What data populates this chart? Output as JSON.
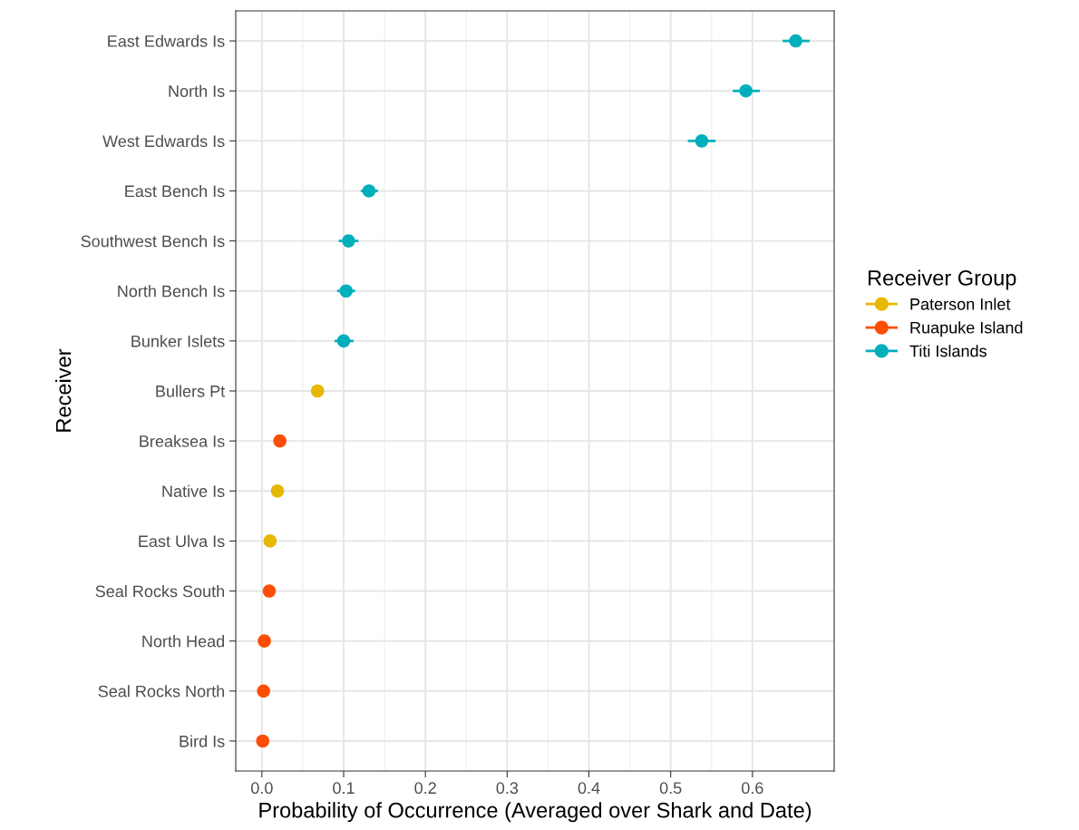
{
  "chart_data": {
    "type": "scatter",
    "orientation": "horizontal",
    "xlabel": "Probability of Occurrence (Averaged over Shark and Date)",
    "ylabel": "Receiver",
    "legend_title": "Receiver Group",
    "categories": [
      "East Edwards Is",
      "North Is",
      "West Edwards Is",
      "East Bench Is",
      "Southwest Bench Is",
      "North Bench Is",
      "Bunker Islets",
      "Bullers Pt",
      "Breaksea Is",
      "Native Is",
      "East Ulva Is",
      "Seal Rocks South",
      "North Head",
      "Seal Rocks North",
      "Bird Is"
    ],
    "series": [
      {
        "name": "Paterson Inlet",
        "color": "#e7b800",
        "values": [
          null,
          null,
          null,
          null,
          null,
          null,
          null,
          0.068,
          null,
          0.019,
          0.01,
          null,
          null,
          null,
          null
        ]
      },
      {
        "name": "Ruapuke Island",
        "color": "#fc4e07",
        "values": [
          null,
          null,
          null,
          null,
          null,
          null,
          null,
          null,
          0.022,
          null,
          null,
          0.009,
          0.003,
          0.002,
          0.001
        ]
      },
      {
        "name": "Titi Islands",
        "color": "#00afbb",
        "values": [
          0.653,
          0.592,
          0.538,
          0.131,
          0.106,
          0.103,
          0.1,
          null,
          null,
          null,
          null,
          null,
          null,
          null,
          null
        ],
        "errors": [
          [
            0.637,
            0.67
          ],
          [
            0.576,
            0.609
          ],
          [
            0.521,
            0.555
          ],
          [
            0.121,
            0.142
          ],
          [
            0.094,
            0.118
          ],
          [
            0.092,
            0.114
          ],
          [
            0.089,
            0.112
          ],
          null,
          null,
          null,
          null,
          null,
          null,
          null,
          null
        ]
      }
    ],
    "xlim": [
      -0.032,
      0.7
    ],
    "xticks": [
      {
        "value": 0,
        "label": "0.0"
      },
      0.1,
      0.2,
      0.3,
      0.4,
      0.5,
      0.6
    ],
    "grid": true,
    "legend": "right",
    "marker": "circle"
  }
}
